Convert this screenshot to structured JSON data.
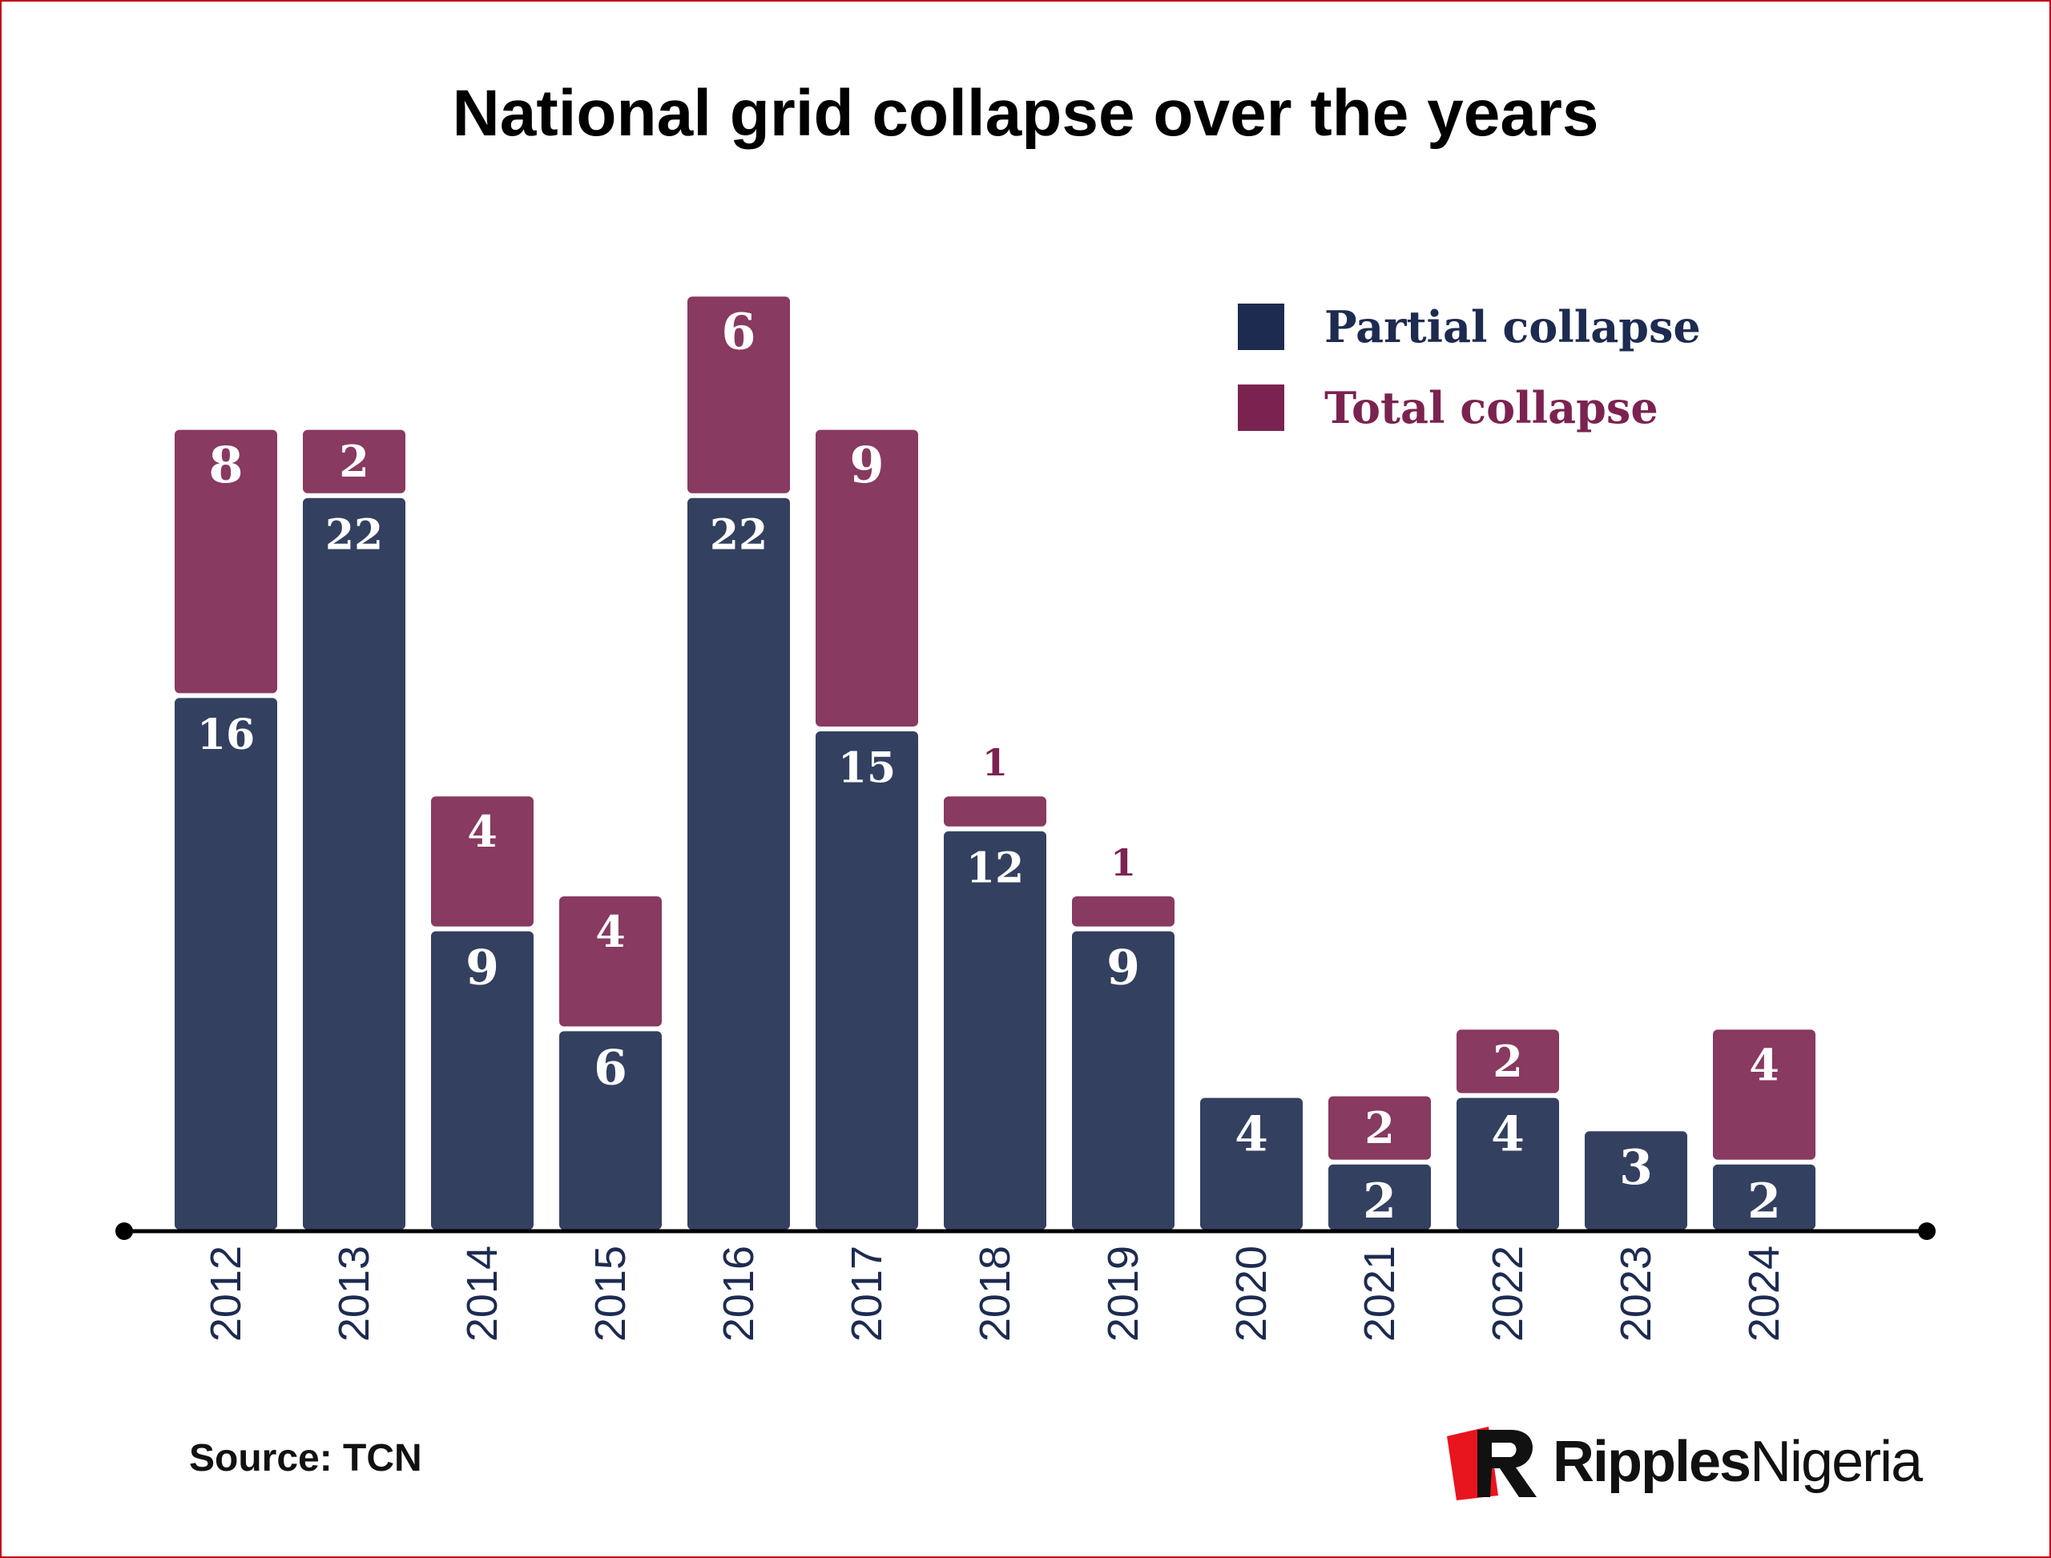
{
  "colors": {
    "partial": "#33405f",
    "total": "#883a60",
    "partial_legend": "#1e2b50",
    "total_legend": "#7b2350",
    "axis": "#000000",
    "year_label": "#1e2b50",
    "total_label_outside": "#7b2350",
    "frame": "#c0001a",
    "brand_red": "#e8141e"
  },
  "chart_data": {
    "type": "bar",
    "stacked": true,
    "title": "National grid collapse over the years",
    "xlabel": "",
    "ylabel": "",
    "ylim": [
      0,
      30
    ],
    "grid": false,
    "legend_position": "top-right",
    "categories": [
      "2012",
      "2013",
      "2014",
      "2015",
      "2016",
      "2017",
      "2018",
      "2019",
      "2020",
      "2021",
      "2022",
      "2023",
      "2024"
    ],
    "series": [
      {
        "name": "Partial collapse",
        "values": [
          16,
          22,
          9,
          6,
          22,
          15,
          12,
          9,
          4,
          2,
          4,
          3,
          2
        ]
      },
      {
        "name": "Total collapse",
        "values": [
          8,
          2,
          4,
          4,
          6,
          9,
          1,
          1,
          0,
          2,
          2,
          0,
          4
        ]
      }
    ]
  },
  "source": "Source: TCN",
  "brand": {
    "part1": "Ripples",
    "part2": "Nigeria",
    "icon": "ripples-nigeria-logo-icon"
  }
}
